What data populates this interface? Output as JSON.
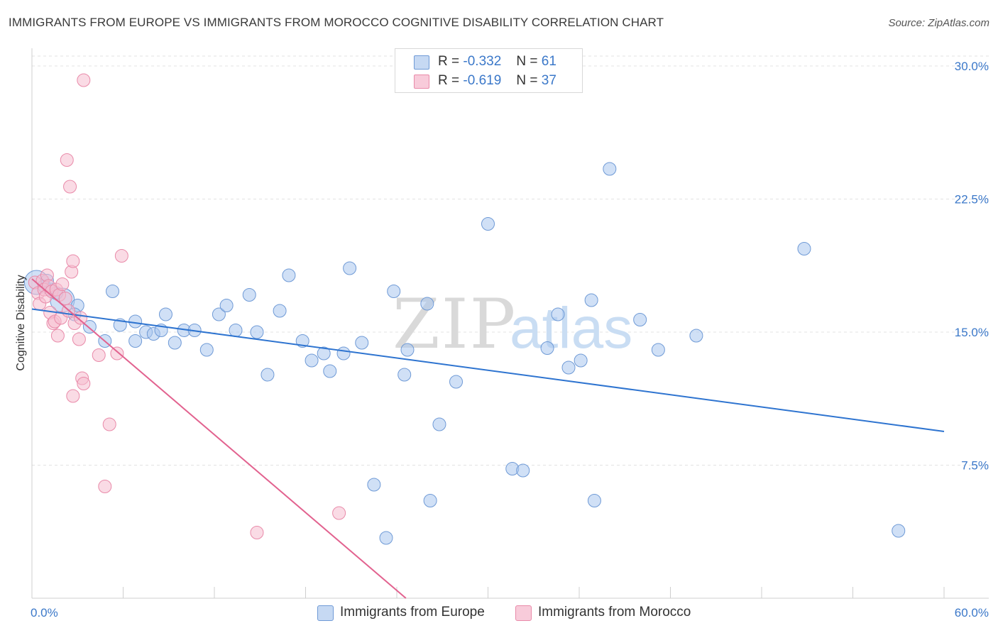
{
  "header": {
    "title": "IMMIGRANTS FROM EUROPE VS IMMIGRANTS FROM MOROCCO COGNITIVE DISABILITY CORRELATION CHART",
    "source": "Source: ZipAtlas.com"
  },
  "watermark": {
    "zip": "ZIP",
    "atlas": "atlas"
  },
  "legend": {
    "rows": [
      {
        "r_label": "R =",
        "r_value": "-0.332",
        "n_label": "N =",
        "n_value": "61"
      },
      {
        "r_label": "R =",
        "r_value": "-0.619",
        "n_label": "N =",
        "n_value": "37"
      }
    ]
  },
  "chart_data": {
    "type": "scatter",
    "title": "IMMIGRANTS FROM EUROPE VS IMMIGRANTS FROM MOROCCO COGNITIVE DISABILITY CORRELATION CHART",
    "xlabel": "",
    "ylabel": "Cognitive Disability",
    "xlim": [
      0,
      60
    ],
    "ylim": [
      0,
      31
    ],
    "x_tick_labels": [
      "0.0%",
      "60.0%"
    ],
    "y_ticks": [
      7.5,
      15.0,
      22.5,
      30.0
    ],
    "y_tick_labels": [
      "7.5%",
      "15.0%",
      "22.5%",
      "30.0%"
    ],
    "grid": "horizontal dashed",
    "legend_position": "top-center",
    "series": [
      {
        "name": "Immigrants from Europe",
        "color": "#a9c6ee",
        "stroke": "#6f9ad6",
        "line_color": "#2e74d0",
        "trend": {
          "x": [
            0,
            60
          ],
          "y": [
            16.3,
            9.4
          ]
        },
        "points": [
          {
            "x": 0.3,
            "y": 17.8,
            "big": true
          },
          {
            "x": 0.8,
            "y": 17.6
          },
          {
            "x": 1.2,
            "y": 17.4
          },
          {
            "x": 2.0,
            "y": 16.8,
            "big": true
          },
          {
            "x": 3.0,
            "y": 16.5
          },
          {
            "x": 2.8,
            "y": 16.0
          },
          {
            "x": 3.8,
            "y": 15.3
          },
          {
            "x": 4.8,
            "y": 14.5
          },
          {
            "x": 5.3,
            "y": 17.3
          },
          {
            "x": 5.8,
            "y": 15.4
          },
          {
            "x": 6.8,
            "y": 15.6
          },
          {
            "x": 6.8,
            "y": 14.5
          },
          {
            "x": 7.5,
            "y": 15.0
          },
          {
            "x": 8.0,
            "y": 14.9
          },
          {
            "x": 8.5,
            "y": 15.1
          },
          {
            "x": 8.8,
            "y": 16.0
          },
          {
            "x": 9.4,
            "y": 14.4
          },
          {
            "x": 10.0,
            "y": 15.1
          },
          {
            "x": 10.7,
            "y": 15.1
          },
          {
            "x": 11.5,
            "y": 14.0
          },
          {
            "x": 12.3,
            "y": 16.0
          },
          {
            "x": 12.8,
            "y": 16.5
          },
          {
            "x": 13.4,
            "y": 15.1
          },
          {
            "x": 14.3,
            "y": 17.1
          },
          {
            "x": 14.8,
            "y": 15.0
          },
          {
            "x": 15.5,
            "y": 12.6
          },
          {
            "x": 16.3,
            "y": 16.2
          },
          {
            "x": 16.9,
            "y": 18.2
          },
          {
            "x": 17.8,
            "y": 14.5
          },
          {
            "x": 18.4,
            "y": 13.4
          },
          {
            "x": 19.2,
            "y": 13.8
          },
          {
            "x": 19.6,
            "y": 12.8
          },
          {
            "x": 20.5,
            "y": 13.8
          },
          {
            "x": 20.9,
            "y": 18.6
          },
          {
            "x": 21.7,
            "y": 14.4
          },
          {
            "x": 22.5,
            "y": 6.4
          },
          {
            "x": 23.3,
            "y": 3.4
          },
          {
            "x": 23.8,
            "y": 17.3
          },
          {
            "x": 24.5,
            "y": 12.6
          },
          {
            "x": 24.7,
            "y": 14.0
          },
          {
            "x": 26.0,
            "y": 16.6
          },
          {
            "x": 26.8,
            "y": 9.8
          },
          {
            "x": 26.2,
            "y": 5.5
          },
          {
            "x": 27.9,
            "y": 12.2
          },
          {
            "x": 30.0,
            "y": 21.1
          },
          {
            "x": 31.6,
            "y": 7.3
          },
          {
            "x": 32.3,
            "y": 7.2
          },
          {
            "x": 33.9,
            "y": 14.1
          },
          {
            "x": 34.6,
            "y": 16.0
          },
          {
            "x": 35.3,
            "y": 13.0
          },
          {
            "x": 36.1,
            "y": 13.4
          },
          {
            "x": 36.8,
            "y": 16.8
          },
          {
            "x": 37.0,
            "y": 5.5
          },
          {
            "x": 38.0,
            "y": 24.2
          },
          {
            "x": 40.0,
            "y": 15.7
          },
          {
            "x": 41.2,
            "y": 14.0
          },
          {
            "x": 43.7,
            "y": 14.8
          },
          {
            "x": 50.8,
            "y": 19.7
          },
          {
            "x": 57.0,
            "y": 3.8
          },
          {
            "x": 1.6,
            "y": 17.2
          },
          {
            "x": 1.0,
            "y": 17.9
          }
        ]
      },
      {
        "name": "Immigrants from Morocco",
        "color": "#f6bdd0",
        "stroke": "#e98aa9",
        "line_color": "#e2628f",
        "trend": {
          "x": [
            0,
            24.6
          ],
          "y": [
            18.0,
            0
          ]
        },
        "points": [
          {
            "x": 0.2,
            "y": 17.8
          },
          {
            "x": 0.4,
            "y": 17.2
          },
          {
            "x": 0.5,
            "y": 16.6
          },
          {
            "x": 0.7,
            "y": 17.9
          },
          {
            "x": 0.8,
            "y": 17.4
          },
          {
            "x": 0.9,
            "y": 17.0
          },
          {
            "x": 1.0,
            "y": 18.2
          },
          {
            "x": 1.1,
            "y": 17.6
          },
          {
            "x": 1.2,
            "y": 16.1
          },
          {
            "x": 1.3,
            "y": 17.3
          },
          {
            "x": 1.4,
            "y": 15.5
          },
          {
            "x": 1.5,
            "y": 15.6
          },
          {
            "x": 1.6,
            "y": 17.4
          },
          {
            "x": 1.7,
            "y": 14.8
          },
          {
            "x": 1.8,
            "y": 17.1
          },
          {
            "x": 1.9,
            "y": 15.8
          },
          {
            "x": 2.0,
            "y": 17.7
          },
          {
            "x": 2.2,
            "y": 16.9
          },
          {
            "x": 2.3,
            "y": 24.7
          },
          {
            "x": 2.4,
            "y": 16.2
          },
          {
            "x": 2.5,
            "y": 23.2
          },
          {
            "x": 2.6,
            "y": 18.4
          },
          {
            "x": 2.7,
            "y": 19.0
          },
          {
            "x": 2.8,
            "y": 15.5
          },
          {
            "x": 2.7,
            "y": 11.4
          },
          {
            "x": 3.1,
            "y": 14.6
          },
          {
            "x": 3.2,
            "y": 15.8
          },
          {
            "x": 3.3,
            "y": 12.4
          },
          {
            "x": 3.4,
            "y": 12.1
          },
          {
            "x": 3.4,
            "y": 29.2
          },
          {
            "x": 4.4,
            "y": 13.7
          },
          {
            "x": 4.8,
            "y": 6.3
          },
          {
            "x": 5.1,
            "y": 9.8
          },
          {
            "x": 5.6,
            "y": 13.8
          },
          {
            "x": 5.9,
            "y": 19.3
          },
          {
            "x": 14.8,
            "y": 3.7
          },
          {
            "x": 20.2,
            "y": 4.8
          }
        ]
      }
    ]
  },
  "bottom_legend": {
    "items": [
      {
        "label": "Immigrants from Europe"
      },
      {
        "label": "Immigrants from Morocco"
      }
    ]
  }
}
